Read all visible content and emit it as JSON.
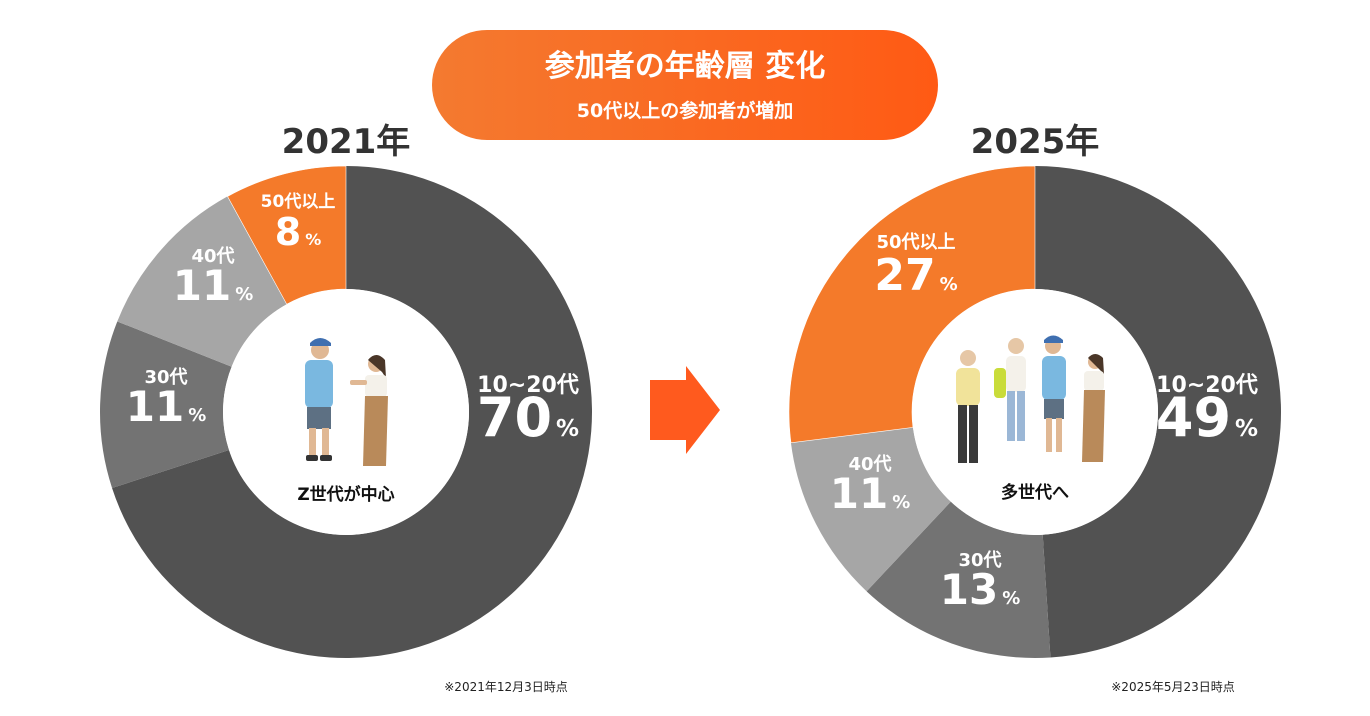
{
  "header": {
    "title": "参加者の年齢層  変化",
    "subtitle": "50代以上の参加者が増加",
    "color_start": "#f47a30",
    "color_end": "#ff5a14"
  },
  "colors": {
    "dark": "#525252",
    "mid": "#737373",
    "light": "#a6a6a6",
    "orange": "#f47a2a",
    "arrow": "#ff5a1e",
    "text_dark": "#333333"
  },
  "chart_data": [
    {
      "type": "pie",
      "title": "2021年",
      "center_label": "Z世代が中心",
      "note": "※2021年12月3日時点",
      "slices": [
        {
          "label": "10~20代",
          "value": 70,
          "pct_text": "70"
        },
        {
          "label": "30代",
          "value": 11,
          "pct_text": "11"
        },
        {
          "label": "40代",
          "value": 11,
          "pct_text": "11"
        },
        {
          "label": "50代以上",
          "value": 8,
          "pct_text": "8"
        }
      ]
    },
    {
      "type": "pie",
      "title": "2025年",
      "center_label": "多世代へ",
      "note": "※2025年5月23日時点",
      "slices": [
        {
          "label": "10~20代",
          "value": 49,
          "pct_text": "49"
        },
        {
          "label": "30代",
          "value": 13,
          "pct_text": "13"
        },
        {
          "label": "40代",
          "value": 11,
          "pct_text": "11"
        },
        {
          "label": "50代以上",
          "value": 27,
          "pct_text": "27"
        }
      ]
    }
  ]
}
